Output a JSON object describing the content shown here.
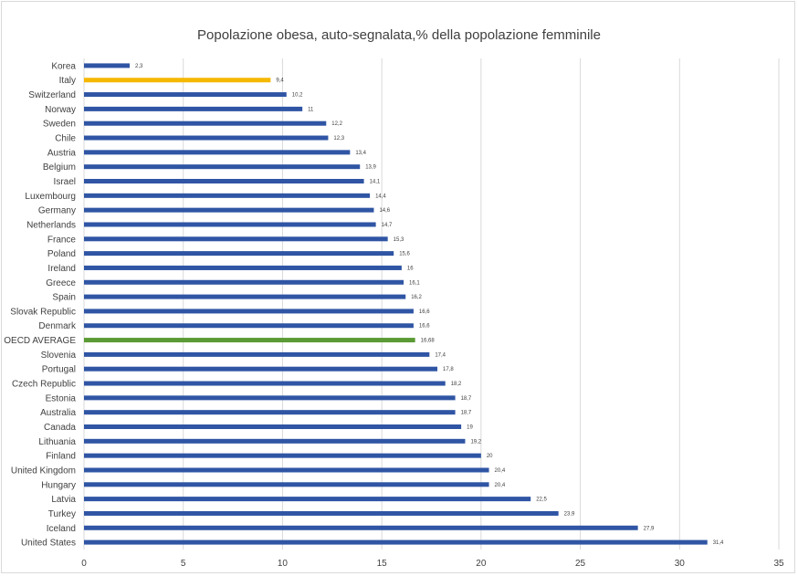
{
  "chart_data": {
    "type": "bar",
    "orientation": "horizontal",
    "title": "Popolazione obesa, auto-segnalata,% della popolazione femminile",
    "xlabel": "",
    "ylabel": "",
    "xlim": [
      0,
      35
    ],
    "x_ticks": [
      "0",
      "5",
      "10",
      "15",
      "20",
      "25",
      "30",
      "35"
    ],
    "grid": "vertical",
    "legend": "none",
    "colors": {
      "default": "#2f55a4",
      "highlight_italy": "#f5b800",
      "highlight_oecd": "#5b9a34",
      "grid": "#d9d9d9"
    },
    "bars": [
      {
        "category": "Korea",
        "value": 2.3,
        "label": "2,3",
        "color": "default"
      },
      {
        "category": "Italy",
        "value": 9.4,
        "label": "9,4",
        "color": "highlight_italy"
      },
      {
        "category": "Switzerland",
        "value": 10.2,
        "label": "10,2",
        "color": "default"
      },
      {
        "category": "Norway",
        "value": 11,
        "label": "11",
        "color": "default"
      },
      {
        "category": "Sweden",
        "value": 12.2,
        "label": "12,2",
        "color": "default"
      },
      {
        "category": "Chile",
        "value": 12.3,
        "label": "12,3",
        "color": "default"
      },
      {
        "category": "Austria",
        "value": 13.4,
        "label": "13,4",
        "color": "default"
      },
      {
        "category": "Belgium",
        "value": 13.9,
        "label": "13,9",
        "color": "default"
      },
      {
        "category": "Israel",
        "value": 14.1,
        "label": "14,1",
        "color": "default"
      },
      {
        "category": "Luxembourg",
        "value": 14.4,
        "label": "14,4",
        "color": "default"
      },
      {
        "category": "Germany",
        "value": 14.6,
        "label": "14,6",
        "color": "default"
      },
      {
        "category": "Netherlands",
        "value": 14.7,
        "label": "14,7",
        "color": "default"
      },
      {
        "category": "France",
        "value": 15.3,
        "label": "15,3",
        "color": "default"
      },
      {
        "category": "Poland",
        "value": 15.6,
        "label": "15,6",
        "color": "default"
      },
      {
        "category": "Ireland",
        "value": 16,
        "label": "16",
        "color": "default"
      },
      {
        "category": "Greece",
        "value": 16.1,
        "label": "16,1",
        "color": "default"
      },
      {
        "category": "Spain",
        "value": 16.2,
        "label": "16,2",
        "color": "default"
      },
      {
        "category": "Slovak Republic",
        "value": 16.6,
        "label": "16,6",
        "color": "default"
      },
      {
        "category": "Denmark",
        "value": 16.6,
        "label": "16,6",
        "color": "default"
      },
      {
        "category": "OECD AVERAGE",
        "value": 16.68,
        "label": "16,68",
        "color": "highlight_oecd"
      },
      {
        "category": "Slovenia",
        "value": 17.4,
        "label": "17,4",
        "color": "default"
      },
      {
        "category": "Portugal",
        "value": 17.8,
        "label": "17,8",
        "color": "default"
      },
      {
        "category": "Czech Republic",
        "value": 18.2,
        "label": "18,2",
        "color": "default"
      },
      {
        "category": "Estonia",
        "value": 18.7,
        "label": "18,7",
        "color": "default"
      },
      {
        "category": "Australia",
        "value": 18.7,
        "label": "18,7",
        "color": "default"
      },
      {
        "category": "Canada",
        "value": 19,
        "label": "19",
        "color": "default"
      },
      {
        "category": "Lithuania",
        "value": 19.2,
        "label": "19,2",
        "color": "default"
      },
      {
        "category": "Finland",
        "value": 20,
        "label": "20",
        "color": "default"
      },
      {
        "category": "United Kingdom",
        "value": 20.4,
        "label": "20,4",
        "color": "default"
      },
      {
        "category": "Hungary",
        "value": 20.4,
        "label": "20,4",
        "color": "default"
      },
      {
        "category": "Latvia",
        "value": 22.5,
        "label": "22,5",
        "color": "default"
      },
      {
        "category": "Turkey",
        "value": 23.9,
        "label": "23,9",
        "color": "default"
      },
      {
        "category": "Iceland",
        "value": 27.9,
        "label": "27,9",
        "color": "default"
      },
      {
        "category": "United States",
        "value": 31.4,
        "label": "31,4",
        "color": "default"
      }
    ]
  }
}
